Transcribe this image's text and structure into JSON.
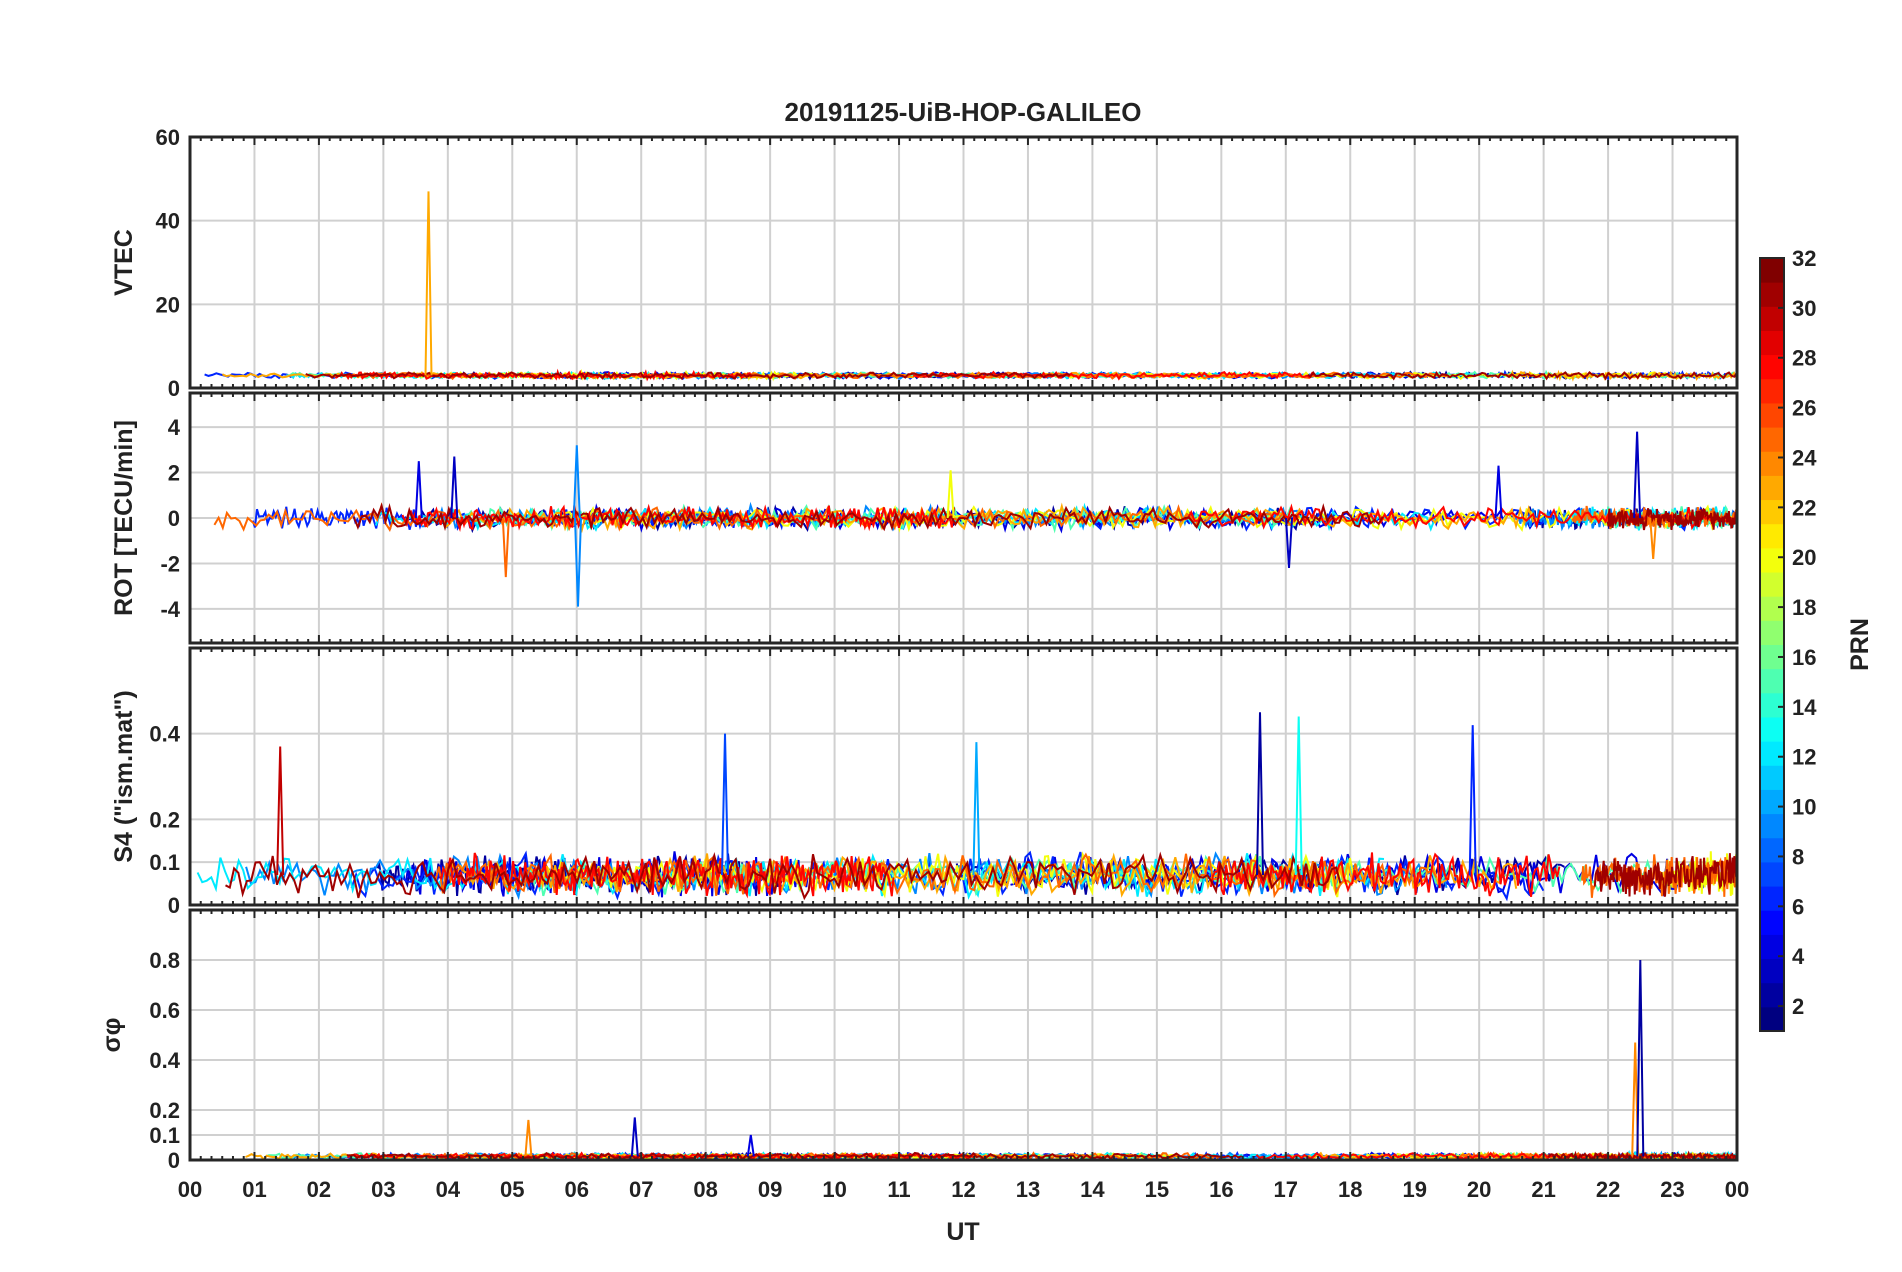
{
  "chart_data": {
    "type": "line",
    "title": "20191125-UiB-HOP-GALILEO",
    "xlabel": "UT",
    "x_tick_labels": [
      "00",
      "01",
      "02",
      "03",
      "04",
      "05",
      "06",
      "07",
      "08",
      "09",
      "10",
      "11",
      "12",
      "13",
      "14",
      "15",
      "16",
      "17",
      "18",
      "19",
      "20",
      "21",
      "22",
      "23",
      "00"
    ],
    "xlim_hours": [
      0,
      24
    ],
    "grid": true,
    "colorbar": {
      "label": "PRN",
      "range": [
        1,
        32
      ],
      "ticks": [
        "2",
        "4",
        "6",
        "8",
        "10",
        "12",
        "14",
        "16",
        "18",
        "20",
        "22",
        "24",
        "26",
        "28",
        "30",
        "32"
      ],
      "colormap": "jet"
    },
    "panels": [
      {
        "id": "vtec",
        "ylabel": "VTEC",
        "ylim": [
          0,
          60
        ],
        "y_ticks": [
          "0",
          "20",
          "40",
          "60"
        ],
        "baseline": 3,
        "noise": 0.6,
        "spikes": [
          {
            "hour": 3.7,
            "value": 47,
            "prn": 23
          }
        ]
      },
      {
        "id": "rot",
        "ylabel": "ROT [TECU/min]",
        "ylim": [
          -5.5,
          5.5
        ],
        "y_ticks": [
          "-4",
          "-2",
          "0",
          "2",
          "4"
        ],
        "baseline": 0,
        "noise": 0.4,
        "spikes": [
          {
            "hour": 3.55,
            "value": 2.5,
            "prn": 4
          },
          {
            "hour": 4.1,
            "value": 2.7,
            "prn": 3
          },
          {
            "hour": 4.9,
            "value": -2.6,
            "prn": 25
          },
          {
            "hour": 6.0,
            "value": 3.2,
            "prn": 9
          },
          {
            "hour": 6.02,
            "value": -3.9,
            "prn": 9
          },
          {
            "hour": 11.8,
            "value": 2.1,
            "prn": 20
          },
          {
            "hour": 17.05,
            "value": -2.2,
            "prn": 3
          },
          {
            "hour": 20.3,
            "value": 2.3,
            "prn": 4
          },
          {
            "hour": 22.45,
            "value": 3.8,
            "prn": 3
          },
          {
            "hour": 22.7,
            "value": -1.8,
            "prn": 24
          }
        ]
      },
      {
        "id": "s4",
        "ylabel": "S4 (\"ism.mat\")",
        "ylim": [
          0,
          0.6
        ],
        "y_ticks": [
          "0",
          "0.1",
          "0.2",
          "0.4"
        ],
        "y_tick_values": [
          0,
          0.1,
          0.2,
          0.4
        ],
        "baseline": 0.07,
        "noise": 0.04,
        "spikes": [
          {
            "hour": 1.4,
            "value": 0.37,
            "prn": 30
          },
          {
            "hour": 8.3,
            "value": 0.4,
            "prn": 7
          },
          {
            "hour": 12.2,
            "value": 0.38,
            "prn": 10
          },
          {
            "hour": 16.6,
            "value": 0.45,
            "prn": 2
          },
          {
            "hour": 17.2,
            "value": 0.44,
            "prn": 13
          },
          {
            "hour": 19.9,
            "value": 0.42,
            "prn": 6
          }
        ]
      },
      {
        "id": "sigma_phi",
        "ylabel": "σφ",
        "ylim": [
          0,
          1.0
        ],
        "y_ticks": [
          "0",
          "0.1",
          "0.2",
          "0.4",
          "0.6",
          "0.8"
        ],
        "y_tick_values": [
          0,
          0.1,
          0.2,
          0.4,
          0.6,
          0.8
        ],
        "baseline": 0.015,
        "noise": 0.01,
        "spikes": [
          {
            "hour": 5.25,
            "value": 0.16,
            "prn": 24
          },
          {
            "hour": 6.9,
            "value": 0.17,
            "prn": 3
          },
          {
            "hour": 8.7,
            "value": 0.1,
            "prn": 4
          },
          {
            "hour": 22.42,
            "value": 0.47,
            "prn": 24
          },
          {
            "hour": 22.5,
            "value": 0.8,
            "prn": 2
          }
        ]
      }
    ]
  }
}
